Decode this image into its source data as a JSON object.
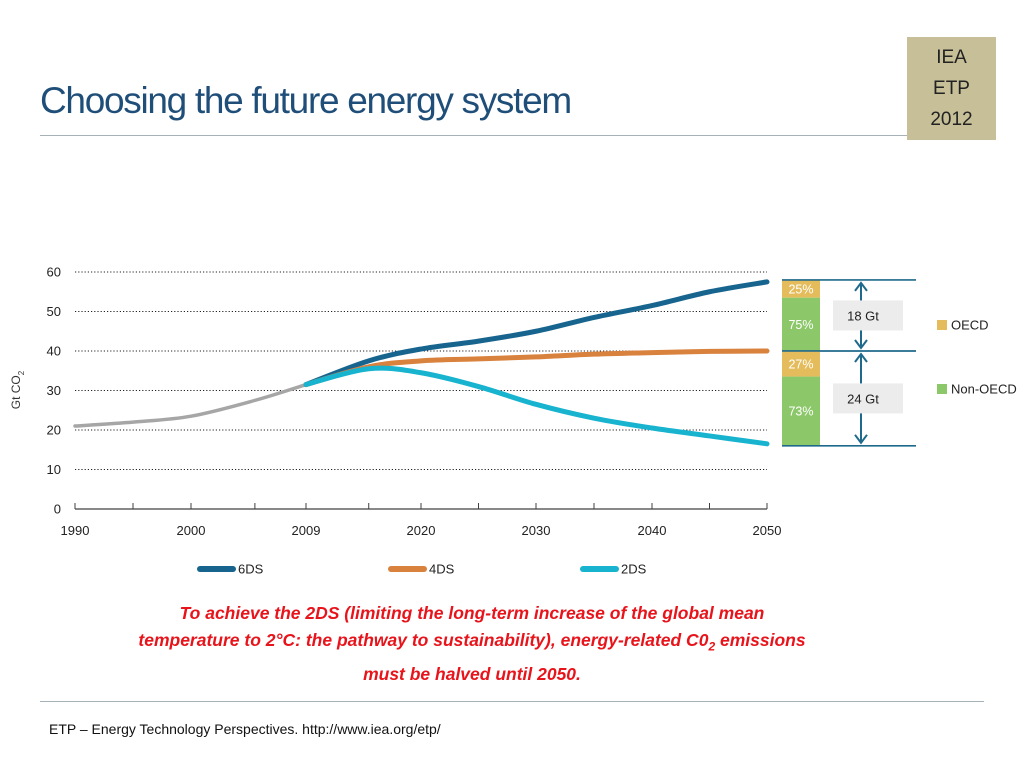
{
  "slide": {
    "title": "Choosing the future energy system",
    "badge": [
      "IEA",
      "ETP",
      "2012"
    ],
    "caption": {
      "line1": "To achieve the 2DS (limiting the long-term increase of the global mean",
      "line2_before": "temperature to 2°C: the pathway to sustainability), energy-related C0",
      "line2_sub": "2",
      "line2_after": " emissions",
      "line3": "must be halved until 2050."
    },
    "footer": "ETP – Energy Technology Perspectives. http://www.iea.org/etp/"
  },
  "chart_data": {
    "type": "line",
    "ylabel_main": "Gt CO",
    "ylabel_sub": "2",
    "ylim": [
      0,
      60
    ],
    "yticks": [
      0,
      10,
      20,
      30,
      40,
      50,
      60
    ],
    "xticks": [
      1990,
      2000,
      2009,
      2020,
      2030,
      2040,
      2050
    ],
    "grid": "dotted horizontal",
    "series": [
      {
        "name": "historical",
        "color": "#a6a6a6",
        "in_legend": false,
        "x": [
          1990,
          1995,
          2000,
          2005,
          2009
        ],
        "y": [
          21,
          22,
          23.5,
          27.5,
          31.5
        ]
      },
      {
        "name": "6DS",
        "color": "#17658f",
        "in_legend": true,
        "x": [
          2009,
          2015,
          2020,
          2025,
          2030,
          2035,
          2040,
          2045,
          2050
        ],
        "y": [
          31.5,
          37.5,
          40.5,
          42.5,
          45,
          48.5,
          51.5,
          55,
          57.5
        ]
      },
      {
        "name": "4DS",
        "color": "#d9823e",
        "in_legend": true,
        "x": [
          2009,
          2015,
          2020,
          2025,
          2030,
          2035,
          2040,
          2045,
          2050
        ],
        "y": [
          31.5,
          36,
          37.5,
          38,
          38.5,
          39.2,
          39.6,
          39.9,
          40
        ]
      },
      {
        "name": "2DS",
        "color": "#17b3cf",
        "in_legend": true,
        "x": [
          2009,
          2015,
          2020,
          2025,
          2030,
          2035,
          2040,
          2045,
          2050
        ],
        "y": [
          31.5,
          35.5,
          34.5,
          31,
          26.5,
          23,
          20.5,
          18.5,
          16.5
        ]
      }
    ],
    "reduction_bars": [
      {
        "gap": "18 Gt",
        "oecd_pct": "25%",
        "non_oecd_pct": "75%",
        "range": [
          40,
          58
        ]
      },
      {
        "gap": "24 Gt",
        "oecd_pct": "27%",
        "non_oecd_pct": "73%",
        "range": [
          16,
          40
        ]
      }
    ],
    "right_legend": [
      {
        "label": "OECD",
        "color": "#e4bc5b"
      },
      {
        "label": "Non-OECD",
        "color": "#8cc86a"
      }
    ]
  }
}
